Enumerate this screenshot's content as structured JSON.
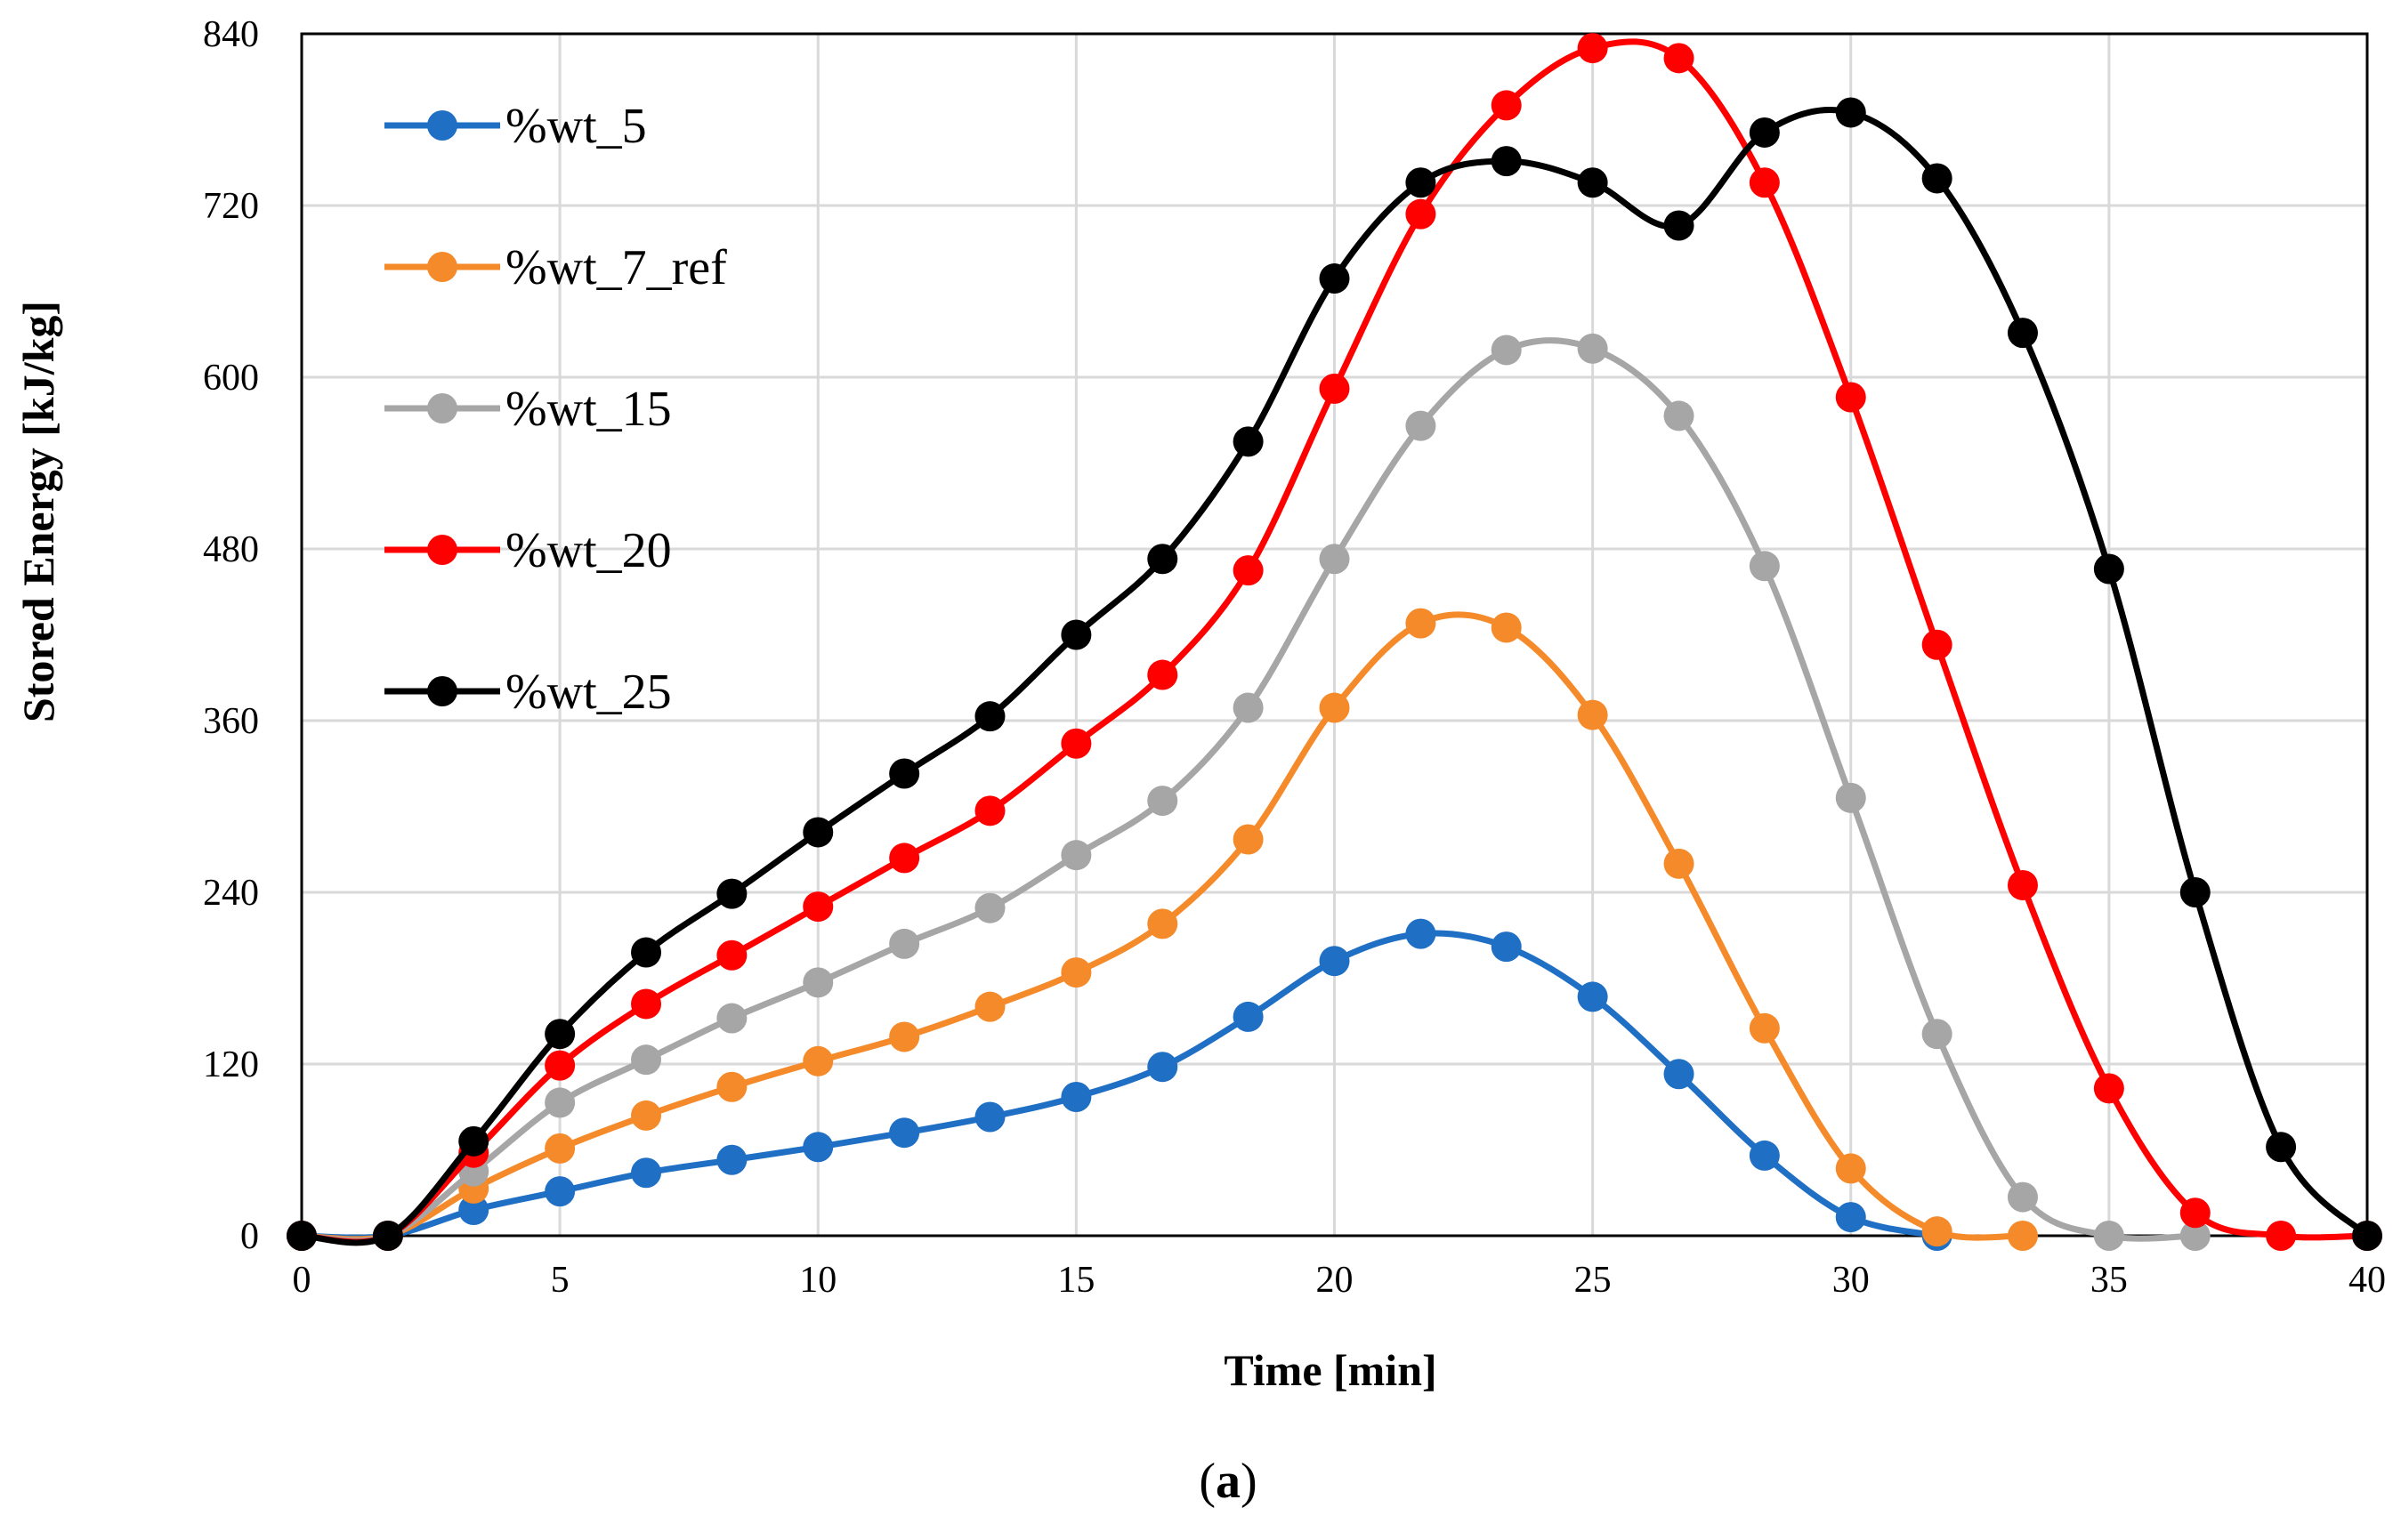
{
  "chart_data": {
    "type": "line",
    "title": "",
    "xlabel": "Time [min]",
    "ylabel": "Stored Energy [kJ/kg]",
    "caption": {
      "open": "(",
      "letter": "a",
      "close": ")"
    },
    "xlim": [
      0,
      40
    ],
    "ylim": [
      0,
      840
    ],
    "xticks": [
      0,
      5,
      10,
      15,
      20,
      25,
      30,
      35,
      40
    ],
    "yticks": [
      0,
      120,
      240,
      360,
      480,
      600,
      720,
      840
    ],
    "grid": true,
    "legend_position": "top-left",
    "x": [
      0,
      1.67,
      3.33,
      5,
      6.67,
      8.33,
      10,
      11.67,
      13.33,
      15,
      16.67,
      18.33,
      20,
      21.67,
      23.33,
      25,
      26.67,
      28.33,
      30,
      31.67,
      33.33,
      35,
      36.67,
      38.33,
      40
    ],
    "series": [
      {
        "name": "%wt_5",
        "color": "#1F6FC5",
        "values": [
          0,
          0,
          18,
          31,
          44,
          53,
          62,
          72,
          83,
          97,
          118,
          153,
          192,
          211,
          202,
          167,
          113,
          56,
          13,
          0,
          null,
          null,
          null,
          null,
          null
        ]
      },
      {
        "name": "%wt_7_ref",
        "color": "#F58A2A",
        "values": [
          0,
          0,
          33,
          61,
          84,
          104,
          122,
          139,
          160,
          184,
          218,
          277,
          369,
          428,
          425,
          364,
          260,
          145,
          47,
          3,
          0,
          null,
          null,
          null,
          null
        ]
      },
      {
        "name": "%wt_15",
        "color": "#A6A6A6",
        "values": [
          0,
          0,
          45,
          93,
          123,
          152,
          177,
          204,
          229,
          266,
          304,
          369,
          473,
          566,
          619,
          620,
          573,
          468,
          306,
          141,
          27,
          0,
          0,
          null,
          null
        ]
      },
      {
        "name": "%wt_20",
        "color": "#FF0000",
        "values": [
          0,
          0,
          58,
          119,
          162,
          196,
          230,
          264,
          297,
          344,
          392,
          465,
          592,
          714,
          790,
          830,
          823,
          736,
          586,
          413,
          245,
          103,
          16,
          0,
          0
        ]
      },
      {
        "name": "%wt_25",
        "color": "#000000",
        "values": [
          0,
          0,
          66,
          141,
          198,
          239,
          282,
          323,
          363,
          420,
          473,
          555,
          669,
          736,
          751,
          736,
          706,
          771,
          785,
          739,
          631,
          466,
          240,
          62,
          0
        ]
      }
    ]
  }
}
